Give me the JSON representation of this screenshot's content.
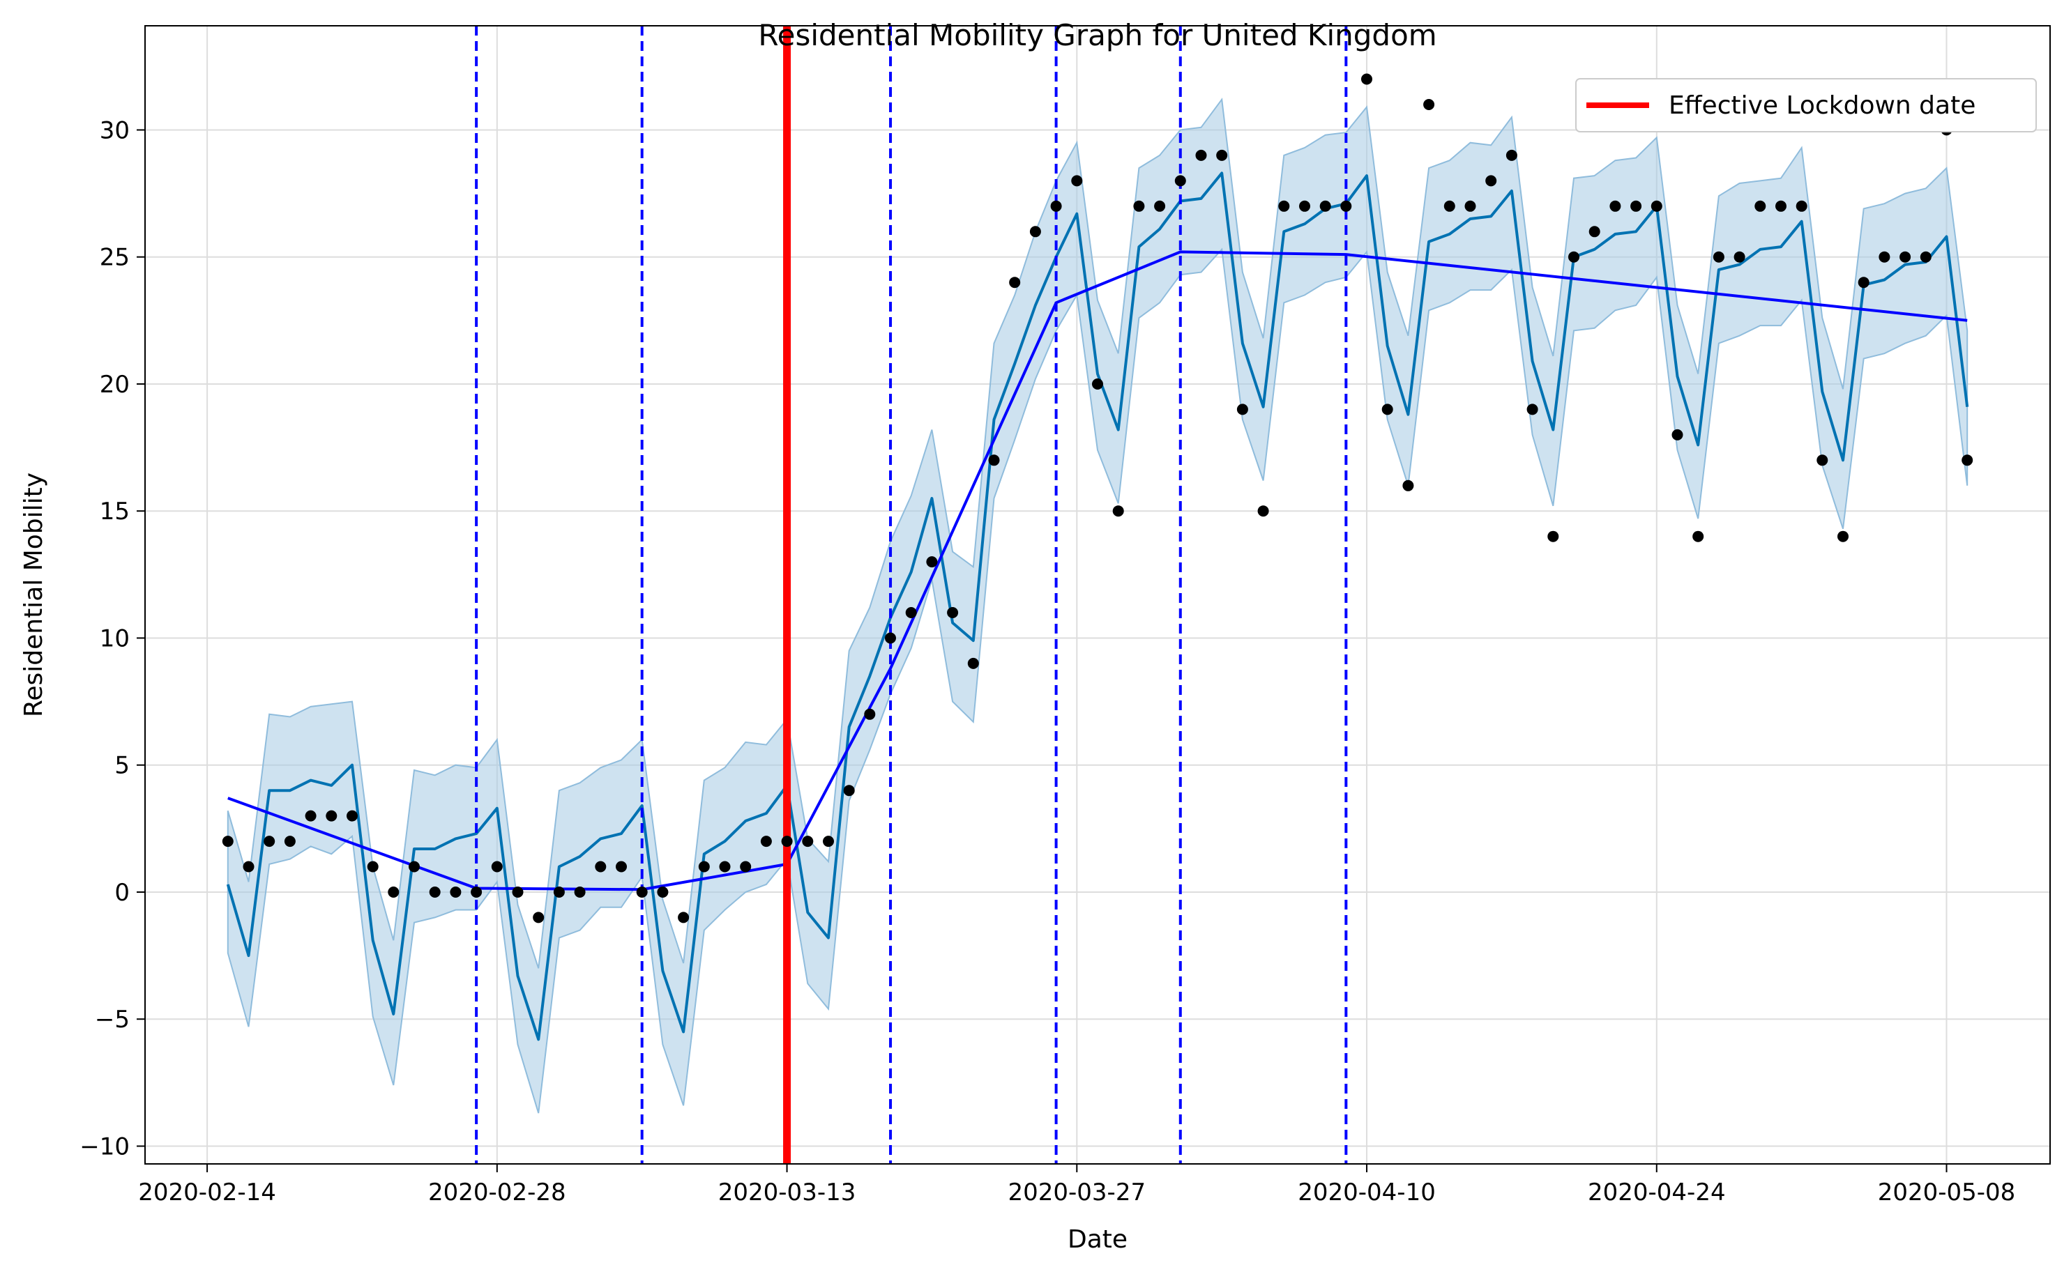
{
  "chart_data": {
    "type": "line",
    "title": "Residential Mobility Graph for United Kingdom",
    "xlabel": "Date",
    "ylabel": "Residential Mobility",
    "x_start": "2020-02-15",
    "x_tick_labels": [
      "2020-02-14",
      "2020-02-28",
      "2020-03-13",
      "2020-03-27",
      "2020-04-10",
      "2020-04-24",
      "2020-05-08"
    ],
    "y_ticks": [
      -10,
      -5,
      0,
      5,
      10,
      15,
      20,
      25,
      30
    ],
    "y_tick_labels": [
      "−10",
      "−5",
      "0",
      "5",
      "10",
      "15",
      "20",
      "25",
      "30"
    ],
    "xlim": [
      "2020-02-11",
      "2020-05-13"
    ],
    "ylim": [
      -10.7,
      34.1
    ],
    "grid": true,
    "legend_position": "top-right",
    "series": [
      {
        "role": "observed",
        "values": [
          2,
          1,
          2,
          2,
          3,
          3,
          3,
          1,
          0,
          1,
          0,
          0,
          0,
          1,
          0,
          -1,
          0,
          0,
          1,
          1,
          0,
          0,
          -1,
          1,
          1,
          1,
          2,
          2,
          2,
          2,
          4,
          7,
          10,
          11,
          13,
          11,
          9,
          17,
          24,
          26,
          27,
          28,
          20,
          15,
          27,
          27,
          28,
          29,
          29,
          19,
          15,
          27,
          27,
          27,
          27,
          32,
          19,
          16,
          31,
          27,
          27,
          28,
          29,
          19,
          14,
          25,
          26,
          27,
          27,
          27,
          18,
          14,
          25,
          25,
          27,
          27,
          27,
          17,
          14,
          24,
          25,
          25,
          25,
          30,
          17
        ],
        "color": "#000000"
      },
      {
        "role": "forecast",
        "values": [
          0.3,
          -2.5,
          4.0,
          4.0,
          4.4,
          4.2,
          5.0,
          -1.9,
          -4.8,
          1.7,
          1.7,
          2.1,
          2.3,
          3.3,
          -3.3,
          -5.8,
          1.0,
          1.4,
          2.1,
          2.3,
          3.4,
          -3.1,
          -5.5,
          1.5,
          2.0,
          2.8,
          3.1,
          4.2,
          -0.8,
          -1.8,
          6.5,
          8.5,
          10.8,
          12.6,
          15.5,
          10.6,
          9.9,
          18.6,
          20.8,
          23.1,
          25.0,
          26.7,
          20.4,
          18.2,
          25.4,
          26.1,
          27.2,
          27.3,
          28.3,
          21.6,
          19.1,
          26.0,
          26.3,
          26.9,
          27.1,
          28.2,
          21.5,
          18.8,
          25.6,
          25.9,
          26.5,
          26.6,
          27.6,
          20.9,
          18.2,
          25.0,
          25.3,
          25.9,
          26.0,
          27.0,
          20.3,
          17.6,
          24.5,
          24.7,
          25.3,
          25.4,
          26.4,
          19.7,
          17.0,
          23.9,
          24.1,
          24.7,
          24.8,
          25.8,
          19.1
        ],
        "color": "#0072b2"
      },
      {
        "role": "interval-upper",
        "values": [
          3.2,
          0.4,
          7.0,
          6.9,
          7.3,
          7.4,
          7.5,
          1.0,
          -1.9,
          4.8,
          4.6,
          5.0,
          4.9,
          6.0,
          -0.5,
          -3.0,
          4.0,
          4.3,
          4.9,
          5.2,
          6.0,
          -0.3,
          -2.8,
          4.4,
          4.9,
          5.9,
          5.8,
          6.8,
          2.1,
          1.2,
          9.5,
          11.2,
          13.8,
          15.6,
          18.2,
          13.4,
          12.8,
          21.6,
          23.5,
          26.0,
          28.0,
          29.5,
          23.3,
          21.2,
          28.5,
          29.0,
          30.0,
          30.1,
          31.2,
          24.4,
          21.8,
          29.0,
          29.3,
          29.8,
          29.9,
          30.9,
          24.4,
          21.9,
          28.5,
          28.8,
          29.5,
          29.4,
          30.5,
          23.8,
          21.1,
          28.1,
          28.2,
          28.8,
          28.9,
          29.7,
          23.1,
          20.4,
          27.4,
          27.9,
          28.0,
          28.1,
          29.3,
          22.6,
          19.8,
          26.9,
          27.1,
          27.5,
          27.7,
          28.5,
          22.1
        ]
      },
      {
        "role": "interval-lower",
        "values": [
          -2.4,
          -5.3,
          1.1,
          1.3,
          1.8,
          1.5,
          2.2,
          -4.9,
          -7.6,
          -1.2,
          -1.0,
          -0.7,
          -0.7,
          0.4,
          -6.0,
          -8.7,
          -1.8,
          -1.5,
          -0.6,
          -0.6,
          0.6,
          -6.0,
          -8.4,
          -1.5,
          -0.7,
          0.0,
          0.3,
          1.3,
          -3.6,
          -4.6,
          3.6,
          5.6,
          7.8,
          9.6,
          12.3,
          7.5,
          6.7,
          15.5,
          17.8,
          20.2,
          22.1,
          23.5,
          17.4,
          15.3,
          22.6,
          23.2,
          24.3,
          24.4,
          25.3,
          18.6,
          16.2,
          23.2,
          23.5,
          24.0,
          24.2,
          25.2,
          18.6,
          16.0,
          22.9,
          23.2,
          23.7,
          23.7,
          24.5,
          18.0,
          15.2,
          22.1,
          22.2,
          22.9,
          23.1,
          24.2,
          17.4,
          14.7,
          21.6,
          21.9,
          22.3,
          22.3,
          23.3,
          16.8,
          14.3,
          21.0,
          21.2,
          21.6,
          21.9,
          22.7,
          16.0
        ]
      },
      {
        "role": "trend",
        "points": [
          {
            "x": "2020-02-15",
            "y": 3.7
          },
          {
            "x": "2020-02-27",
            "y": 0.15
          },
          {
            "x": "2020-03-06",
            "y": 0.1
          },
          {
            "x": "2020-03-13",
            "y": 1.1
          },
          {
            "x": "2020-03-18",
            "y": 8.8
          },
          {
            "x": "2020-03-26",
            "y": 23.2
          },
          {
            "x": "2020-04-01",
            "y": 25.2
          },
          {
            "x": "2020-04-09",
            "y": 25.1
          },
          {
            "x": "2020-05-09",
            "y": 22.5
          }
        ],
        "color": "#0000ff"
      }
    ],
    "changepoints": [
      "2020-02-27",
      "2020-03-06",
      "2020-03-18",
      "2020-03-26",
      "2020-04-01",
      "2020-04-09"
    ],
    "changepoint_color": "#0000ff",
    "lockdown": {
      "date": "2020-03-13",
      "label": "Effective Lockdown date",
      "color": "#ff0000"
    },
    "interval_color": "#a6cbe3"
  }
}
